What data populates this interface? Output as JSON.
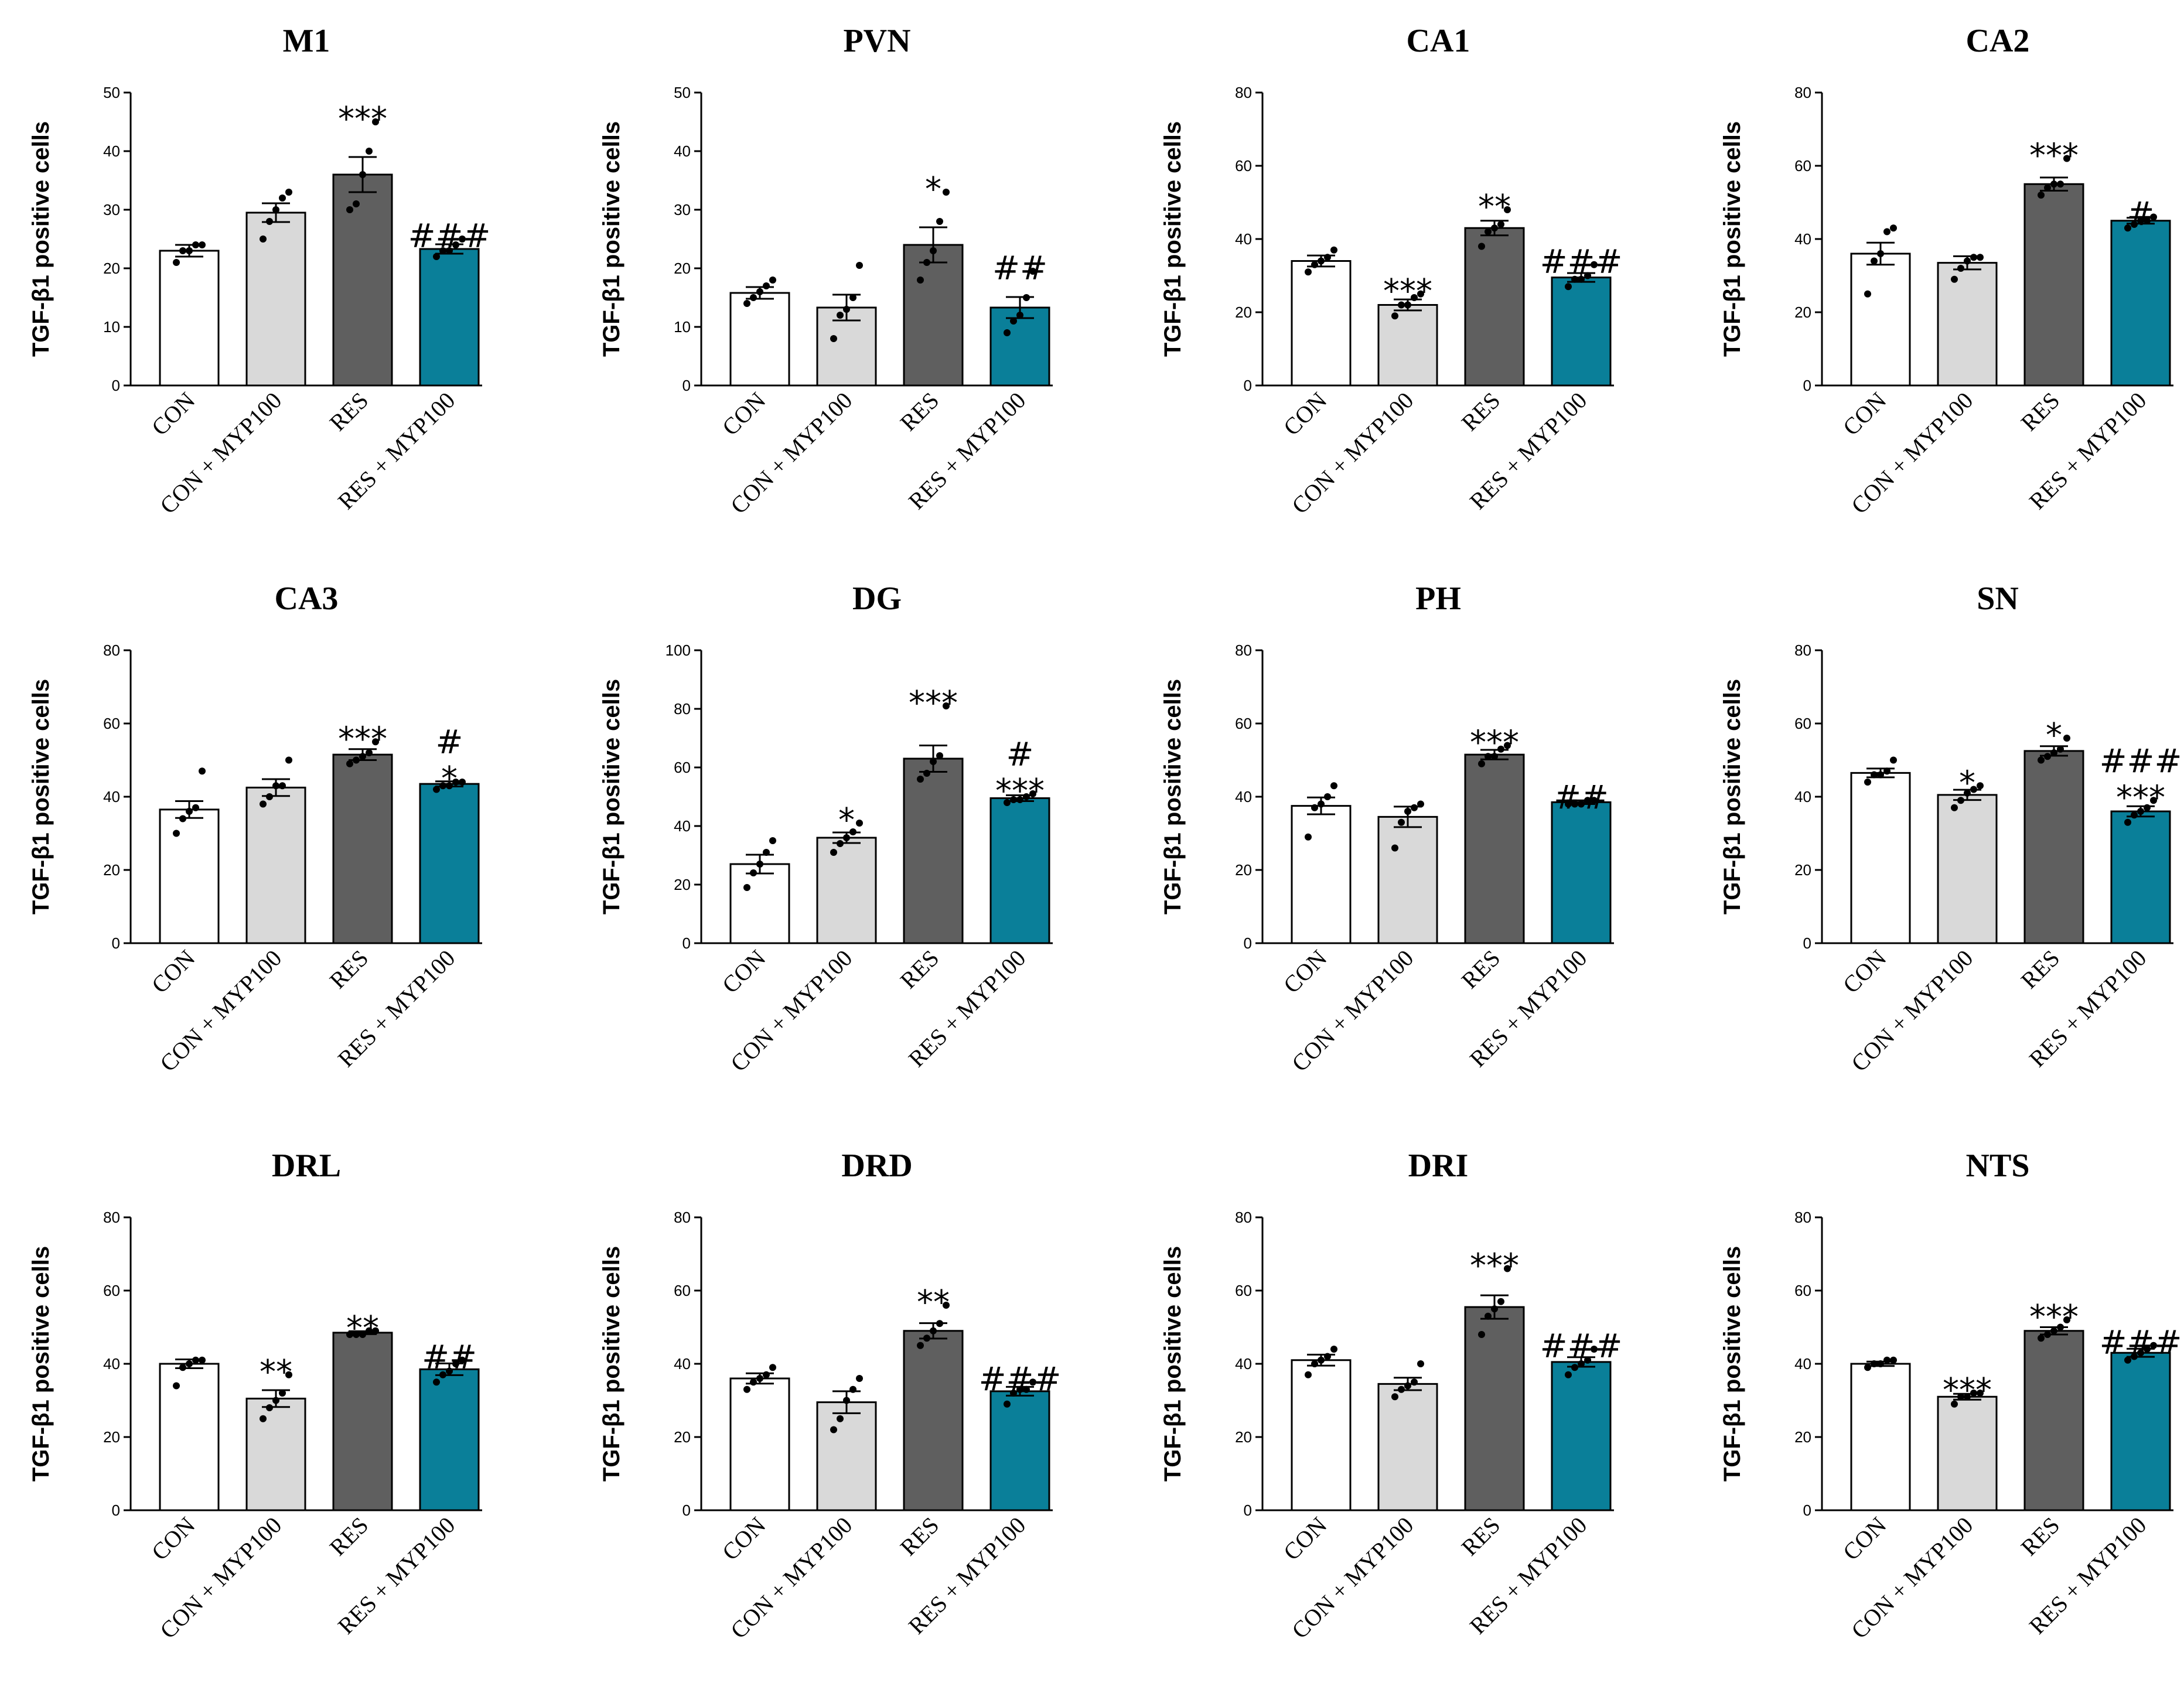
{
  "chart_data": {
    "type": "bar",
    "ylabel": "TGF-β1 positive cells",
    "categories": [
      "CON",
      "CON + MYP100",
      "RES",
      "RES + MYP100"
    ],
    "colors": [
      "#ffffff",
      "#d9d9d9",
      "#5f5f5f",
      "#0a7f99"
    ],
    "panels": [
      {
        "title": "M1",
        "ylim": [
          0,
          50
        ],
        "yticks": [
          0,
          10,
          20,
          30,
          40,
          50
        ],
        "values": [
          23,
          29.5,
          36,
          23.3
        ],
        "errors": [
          1,
          1.6,
          3,
          0.8
        ],
        "points": [
          [
            21,
            23,
            23,
            24,
            24
          ],
          [
            25,
            28,
            30,
            32,
            33
          ],
          [
            30,
            31,
            36,
            40,
            45
          ],
          [
            22,
            23,
            23,
            24,
            25
          ]
        ],
        "significance": [
          [],
          [],
          [
            "***"
          ],
          [
            "###"
          ]
        ]
      },
      {
        "title": "PVN",
        "ylim": [
          0,
          50
        ],
        "yticks": [
          0,
          10,
          20,
          30,
          40,
          50
        ],
        "values": [
          15.8,
          13.3,
          24,
          13.3
        ],
        "errors": [
          1,
          2.2,
          3,
          1.8
        ],
        "points": [
          [
            14,
            15,
            16,
            17,
            18
          ],
          [
            8,
            12,
            13,
            15,
            20.5
          ],
          [
            18,
            21,
            23,
            28,
            33
          ],
          [
            9,
            11,
            12,
            15,
            19.5
          ]
        ],
        "significance": [
          [],
          [],
          [
            "*"
          ],
          [
            "##"
          ]
        ]
      },
      {
        "title": "CA1",
        "ylim": [
          0,
          80
        ],
        "yticks": [
          0,
          20,
          40,
          60,
          80
        ],
        "values": [
          34,
          22,
          43,
          29.5
        ],
        "errors": [
          1.5,
          1.5,
          2,
          1.2
        ],
        "points": [
          [
            31,
            33,
            34,
            35,
            37
          ],
          [
            19,
            22,
            22,
            24,
            25
          ],
          [
            38,
            42,
            43,
            44,
            48
          ],
          [
            27,
            29,
            29,
            30,
            33
          ]
        ],
        "significance": [
          [],
          [
            "***"
          ],
          [
            "**"
          ],
          [
            "###"
          ]
        ]
      },
      {
        "title": "CA2",
        "ylim": [
          0,
          80
        ],
        "yticks": [
          0,
          20,
          40,
          60,
          80
        ],
        "values": [
          36,
          33.5,
          55,
          45
        ],
        "errors": [
          3,
          1.8,
          1.8,
          0.8
        ],
        "points": [
          [
            25,
            34,
            36,
            42,
            43
          ],
          [
            29,
            32,
            34,
            35,
            35
          ],
          [
            52,
            54,
            55,
            55,
            62
          ],
          [
            43,
            44,
            45,
            45,
            46
          ]
        ],
        "significance": [
          [],
          [],
          [
            "***"
          ],
          [
            "#"
          ]
        ]
      },
      {
        "title": "CA3",
        "ylim": [
          0,
          80
        ],
        "yticks": [
          0,
          20,
          40,
          60,
          80
        ],
        "values": [
          36.5,
          42.5,
          51.5,
          43.5
        ],
        "errors": [
          2.3,
          2.3,
          1.5,
          0.7
        ],
        "points": [
          [
            30,
            34,
            36,
            37,
            47
          ],
          [
            38,
            40,
            43,
            43,
            50
          ],
          [
            49,
            50,
            51,
            52,
            55
          ],
          [
            42,
            43,
            43,
            44,
            44
          ]
        ],
        "significance": [
          [],
          [],
          [
            "***"
          ],
          [
            "#",
            "*"
          ]
        ]
      },
      {
        "title": "DG",
        "ylim": [
          0,
          100
        ],
        "yticks": [
          0,
          20,
          40,
          60,
          80,
          100
        ],
        "values": [
          27,
          36,
          63,
          49.5
        ],
        "errors": [
          3.2,
          1.8,
          4.5,
          1
        ],
        "points": [
          [
            19,
            24,
            27,
            31,
            35
          ],
          [
            31,
            34,
            36,
            38,
            41
          ],
          [
            56,
            58,
            62,
            64,
            81
          ],
          [
            48,
            49,
            49,
            50,
            51
          ]
        ],
        "significance": [
          [],
          [
            "*"
          ],
          [
            "***"
          ],
          [
            "#",
            "***"
          ]
        ]
      },
      {
        "title": "PH",
        "ylim": [
          0,
          80
        ],
        "yticks": [
          0,
          20,
          40,
          60,
          80
        ],
        "values": [
          37.5,
          34.5,
          51.5,
          38.5
        ],
        "errors": [
          2.3,
          2.8,
          1.3,
          0.5
        ],
        "points": [
          [
            29,
            37,
            38,
            40,
            43
          ],
          [
            26,
            33,
            36,
            37,
            38
          ],
          [
            49,
            51,
            51,
            53,
            54
          ],
          [
            38,
            38,
            38,
            39,
            39
          ]
        ],
        "significance": [
          [],
          [],
          [
            "***"
          ],
          [
            "##"
          ]
        ]
      },
      {
        "title": "SN",
        "ylim": [
          0,
          80
        ],
        "yticks": [
          0,
          20,
          40,
          60,
          80
        ],
        "values": [
          46.5,
          40.5,
          52.5,
          36
        ],
        "errors": [
          1.2,
          1.4,
          1.3,
          1.4
        ],
        "points": [
          [
            44,
            46,
            46,
            47,
            50
          ],
          [
            37,
            39,
            41,
            42,
            43
          ],
          [
            50,
            51,
            52,
            53,
            56
          ],
          [
            33,
            35,
            36,
            37,
            39
          ]
        ],
        "significance": [
          [],
          [
            "*"
          ],
          [
            "*"
          ],
          [
            "###",
            "***"
          ]
        ]
      },
      {
        "title": "DRL",
        "ylim": [
          0,
          80
        ],
        "yticks": [
          0,
          20,
          40,
          60,
          80
        ],
        "values": [
          40,
          30.5,
          48.5,
          38.5
        ],
        "errors": [
          1.2,
          2.3,
          0.4,
          1.6
        ],
        "points": [
          [
            34,
            39,
            40,
            41,
            41
          ],
          [
            25,
            28,
            30,
            32,
            37
          ],
          [
            48,
            48,
            48,
            49,
            49
          ],
          [
            35,
            37,
            38,
            40,
            41
          ]
        ],
        "significance": [
          [],
          [
            "**"
          ],
          [
            "**"
          ],
          [
            "##"
          ]
        ]
      },
      {
        "title": "DRD",
        "ylim": [
          0,
          80
        ],
        "yticks": [
          0,
          20,
          40,
          60,
          80
        ],
        "values": [
          36,
          29.5,
          49,
          32.5
        ],
        "errors": [
          1.4,
          3,
          2.1,
          1.2
        ],
        "points": [
          [
            33,
            35,
            36,
            37,
            39
          ],
          [
            22,
            25,
            30,
            33,
            36
          ],
          [
            45,
            47,
            49,
            51,
            56
          ],
          [
            29,
            32,
            33,
            33,
            35
          ]
        ],
        "significance": [
          [],
          [],
          [
            "**"
          ],
          [
            "###"
          ]
        ]
      },
      {
        "title": "DRI",
        "ylim": [
          0,
          80
        ],
        "yticks": [
          0,
          20,
          40,
          60,
          80
        ],
        "values": [
          41,
          34.5,
          55.5,
          40.5
        ],
        "errors": [
          1.5,
          1.7,
          3.2,
          1.3
        ],
        "points": [
          [
            37,
            40,
            41,
            42,
            44
          ],
          [
            31,
            33,
            34,
            35,
            40
          ],
          [
            48,
            53,
            55,
            57,
            66
          ],
          [
            37,
            39,
            40,
            41,
            44
          ]
        ],
        "significance": [
          [],
          [],
          [
            "***"
          ],
          [
            "###"
          ]
        ]
      },
      {
        "title": "NTS",
        "ylim": [
          0,
          80
        ],
        "yticks": [
          0,
          20,
          40,
          60,
          80
        ],
        "values": [
          40,
          31,
          49,
          43
        ],
        "errors": [
          0.6,
          0.8,
          1,
          1.1
        ],
        "points": [
          [
            39,
            40,
            40,
            41,
            41
          ],
          [
            29,
            31,
            31,
            32,
            32
          ],
          [
            47,
            48,
            49,
            50,
            52
          ],
          [
            41,
            42,
            43,
            44,
            45
          ]
        ],
        "significance": [
          [],
          [
            "***"
          ],
          [
            "***"
          ],
          [
            "###"
          ]
        ]
      }
    ]
  }
}
